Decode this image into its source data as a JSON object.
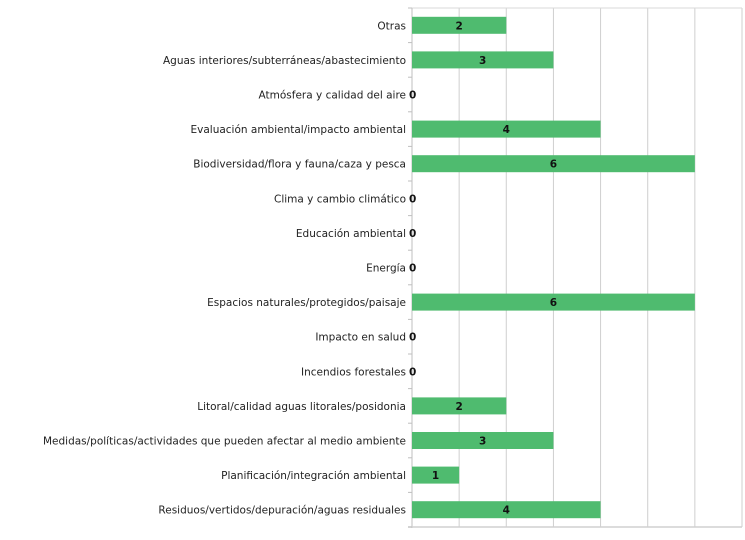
{
  "chart_data": {
    "type": "bar",
    "orientation": "horizontal",
    "title": "",
    "xlabel": "",
    "ylabel": "",
    "xlim": [
      0,
      7
    ],
    "grid": true,
    "legend": "none",
    "bar_color": "#4fbb6f",
    "categories": [
      "Otras",
      "Aguas interiores/subterráneas/abastecimiento",
      "Atmósfera y calidad del aire",
      "Evaluación ambiental/impacto ambiental",
      "Biodiversidad/flora y fauna/caza y pesca",
      "Clima y cambio climático",
      "Educación ambiental",
      "Energía",
      "Espacios naturales/protegidos/paisaje",
      "Impacto en salud",
      "Incendios forestales",
      "Litoral/calidad aguas litorales/posidonia",
      "Medidas/políticas/actividades que pueden afectar al medio ambiente",
      "Planificación/integración ambiental",
      "Residuos/vertidos/depuración/aguas residuales"
    ],
    "values": [
      2,
      3,
      0,
      4,
      6,
      0,
      0,
      0,
      6,
      0,
      0,
      2,
      3,
      1,
      4
    ]
  }
}
